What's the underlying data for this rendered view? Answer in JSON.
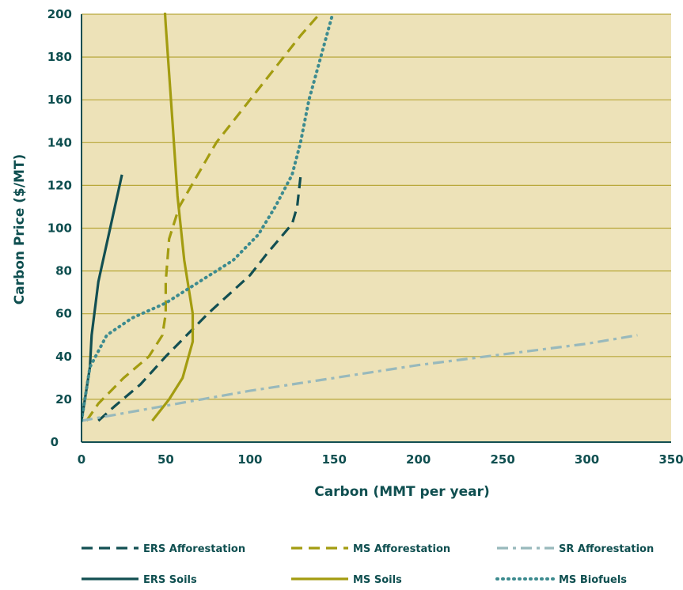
{
  "chart_data": {
    "type": "line",
    "title": "",
    "xlabel": "Carbon (MMT per year)",
    "ylabel": "Carbon Price ($/MT)",
    "xlim": [
      0,
      350
    ],
    "ylim": [
      0,
      200
    ],
    "xticks": [
      0,
      50,
      100,
      150,
      200,
      250,
      300,
      350
    ],
    "yticks": [
      0,
      20,
      40,
      60,
      80,
      100,
      120,
      140,
      160,
      180,
      200
    ],
    "grid": "horizontal",
    "plot_background": "#ede2b8",
    "legend_position": "bottom",
    "series": [
      {
        "name": "ERS Afforestation",
        "color": "#124f52",
        "style": "dashed",
        "points": [
          [
            10,
            10
          ],
          [
            20,
            17
          ],
          [
            35,
            27
          ],
          [
            50,
            40
          ],
          [
            75,
            60
          ],
          [
            100,
            78
          ],
          [
            110,
            88
          ],
          [
            125,
            102
          ],
          [
            128,
            110
          ],
          [
            130,
            124
          ]
        ]
      },
      {
        "name": "MS Afforestation",
        "color": "#a39c10",
        "style": "dashed",
        "points": [
          [
            3,
            10
          ],
          [
            10,
            18
          ],
          [
            25,
            30
          ],
          [
            40,
            40
          ],
          [
            48,
            50
          ],
          [
            50,
            60
          ],
          [
            50,
            75
          ],
          [
            52,
            95
          ],
          [
            58,
            110
          ],
          [
            80,
            140
          ],
          [
            100,
            160
          ],
          [
            130,
            190
          ],
          [
            150,
            208
          ]
        ]
      },
      {
        "name": "SR Afforestation",
        "color": "#98b9bc",
        "style": "dashdot",
        "points": [
          [
            0,
            10
          ],
          [
            50,
            17
          ],
          [
            100,
            24
          ],
          [
            150,
            30
          ],
          [
            200,
            36
          ],
          [
            250,
            41
          ],
          [
            300,
            46
          ],
          [
            330,
            50
          ]
        ]
      },
      {
        "name": "ERS Soils",
        "color": "#124f52",
        "style": "solid",
        "points": [
          [
            0,
            10
          ],
          [
            3,
            25
          ],
          [
            5,
            35
          ],
          [
            6,
            50
          ],
          [
            10,
            75
          ],
          [
            17,
            100
          ],
          [
            24,
            125
          ]
        ]
      },
      {
        "name": "MS Soils",
        "color": "#a39c10",
        "style": "solid",
        "points": [
          [
            42,
            10
          ],
          [
            52,
            20
          ],
          [
            60,
            30
          ],
          [
            66,
            47
          ],
          [
            66,
            60
          ],
          [
            61,
            85
          ],
          [
            57,
            115
          ],
          [
            54,
            150
          ],
          [
            50,
            195
          ],
          [
            49,
            208
          ]
        ]
      },
      {
        "name": "MS Biofuels",
        "color": "#3d8b8f",
        "style": "dotted",
        "points": [
          [
            0,
            10
          ],
          [
            5,
            35
          ],
          [
            15,
            50
          ],
          [
            30,
            58
          ],
          [
            50,
            65
          ],
          [
            70,
            75
          ],
          [
            90,
            85
          ],
          [
            105,
            97
          ],
          [
            115,
            110
          ],
          [
            125,
            125
          ],
          [
            130,
            140
          ],
          [
            135,
            160
          ],
          [
            142,
            180
          ],
          [
            149,
            200
          ]
        ]
      }
    ]
  }
}
